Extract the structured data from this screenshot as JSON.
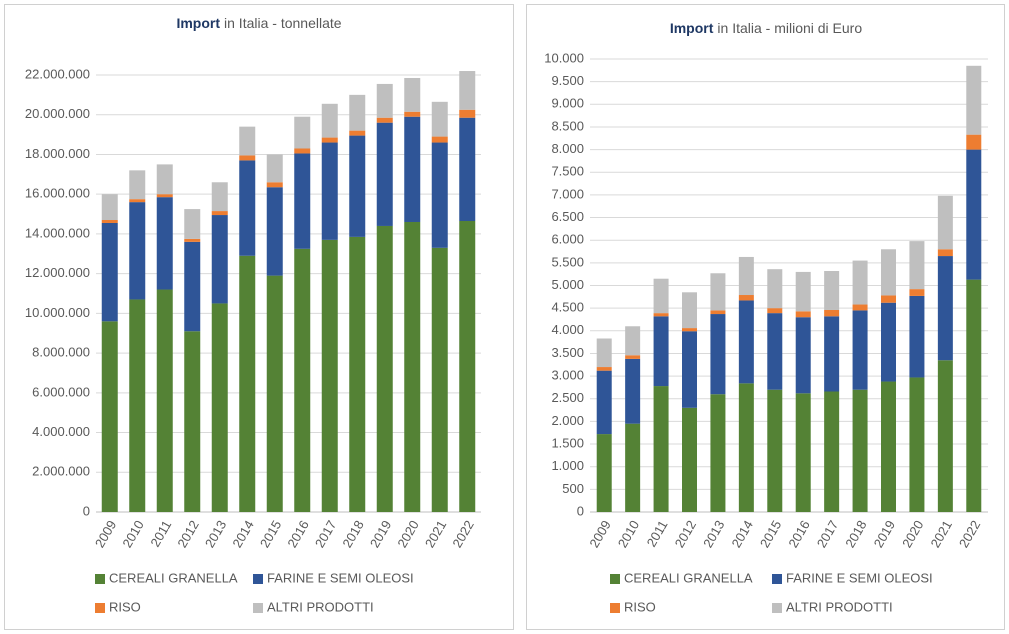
{
  "chart_data": [
    {
      "type": "bar",
      "stacked": true,
      "title_bold": "Import",
      "title": "in Italia - tonnellate",
      "categories": [
        "2009",
        "2010",
        "2011",
        "2012",
        "2013",
        "2014",
        "2015",
        "2016",
        "2017",
        "2018",
        "2019",
        "2020",
        "2021",
        "2022"
      ],
      "ylim": [
        0,
        22000000
      ],
      "yticks": [
        0,
        {
          "value": 2000000,
          "label": "2.000.000"
        },
        {
          "value": 4000000,
          "label": "4.000.000"
        },
        {
          "value": 6000000,
          "label": "6.000.000"
        },
        {
          "value": 8000000,
          "label": "8.000.000"
        },
        {
          "value": 10000000,
          "label": "10.000.000"
        },
        {
          "value": 12000000,
          "label": "12.000.000"
        },
        {
          "value": 14000000,
          "label": "14.000.000"
        },
        {
          "value": 16000000,
          "label": "16.000.000"
        },
        {
          "value": 18000000,
          "label": "18.000.000"
        },
        {
          "value": 20000000,
          "label": "20.000.000"
        },
        {
          "value": 22000000,
          "label": "22.000.000"
        }
      ],
      "grid": true,
      "legend": "bottom",
      "series": [
        {
          "name": "CEREALI GRANELLA",
          "color": "#548235",
          "values": [
            9600000,
            10700000,
            11200000,
            9100000,
            10500000,
            12900000,
            11900000,
            13250000,
            13700000,
            13850000,
            14400000,
            14600000,
            13300000,
            14650000
          ]
        },
        {
          "name": "FARINE E SEMI OLEOSI",
          "color": "#2f5597",
          "values": [
            4950000,
            4900000,
            4650000,
            4500000,
            4450000,
            4800000,
            4450000,
            4800000,
            4900000,
            5100000,
            5200000,
            5300000,
            5300000,
            5200000
          ]
        },
        {
          "name": "RISO",
          "color": "#ed7d31",
          "values": [
            150000,
            150000,
            150000,
            150000,
            200000,
            250000,
            250000,
            250000,
            250000,
            250000,
            250000,
            250000,
            300000,
            400000
          ]
        },
        {
          "name": "ALTRI PRODOTTI",
          "color": "#bfbfbf",
          "values": [
            1300000,
            1450000,
            1500000,
            1500000,
            1450000,
            1450000,
            1400000,
            1600000,
            1700000,
            1800000,
            1700000,
            1700000,
            1750000,
            1950000
          ]
        }
      ]
    },
    {
      "type": "bar",
      "stacked": true,
      "title_bold": "Import",
      "title": "in Italia - milioni di Euro",
      "categories": [
        "2009",
        "2010",
        "2011",
        "2012",
        "2013",
        "2014",
        "2015",
        "2016",
        "2017",
        "2018",
        "2019",
        "2020",
        "2021",
        "2022"
      ],
      "ylim": [
        0,
        10000
      ],
      "yticks": [
        0,
        500,
        {
          "value": 1000,
          "label": "1.000"
        },
        {
          "value": 1500,
          "label": "1.500"
        },
        {
          "value": 2000,
          "label": "2.000"
        },
        {
          "value": 2500,
          "label": "2.500"
        },
        {
          "value": 3000,
          "label": "3.000"
        },
        {
          "value": 3500,
          "label": "3.500"
        },
        {
          "value": 4000,
          "label": "4.000"
        },
        {
          "value": 4500,
          "label": "4.500"
        },
        {
          "value": 5000,
          "label": "5.000"
        },
        {
          "value": 5500,
          "label": "5.500"
        },
        {
          "value": 6000,
          "label": "6.000"
        },
        {
          "value": 6500,
          "label": "6.500"
        },
        {
          "value": 7000,
          "label": "7.000"
        },
        {
          "value": 7500,
          "label": "7.500"
        },
        {
          "value": 8000,
          "label": "8.000"
        },
        {
          "value": 8500,
          "label": "8.500"
        },
        {
          "value": 9000,
          "label": "9.000"
        },
        {
          "value": 9500,
          "label": "9.500"
        },
        {
          "value": 10000,
          "label": "10.000"
        }
      ],
      "grid": true,
      "legend": "bottom",
      "series": [
        {
          "name": "CEREALI GRANELLA",
          "color": "#548235",
          "values": [
            1720,
            1950,
            2780,
            2300,
            2600,
            2840,
            2700,
            2620,
            2660,
            2700,
            2880,
            2970,
            3350,
            5130
          ]
        },
        {
          "name": "FARINE E SEMI OLEOSI",
          "color": "#2f5597",
          "values": [
            1400,
            1430,
            1540,
            1690,
            1770,
            1830,
            1690,
            1680,
            1660,
            1750,
            1740,
            1800,
            2300,
            2870
          ]
        },
        {
          "name": "RISO",
          "color": "#ed7d31",
          "values": [
            80,
            80,
            70,
            70,
            80,
            120,
            110,
            130,
            140,
            130,
            160,
            150,
            150,
            330
          ]
        },
        {
          "name": "ALTRI PRODOTTI",
          "color": "#bfbfbf",
          "values": [
            630,
            640,
            760,
            790,
            820,
            840,
            860,
            870,
            860,
            970,
            1020,
            1060,
            1180,
            1520
          ]
        }
      ]
    }
  ]
}
